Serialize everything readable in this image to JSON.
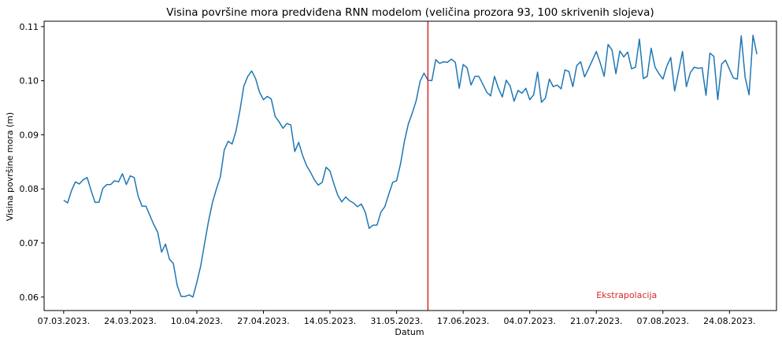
{
  "chart_data": {
    "type": "line",
    "title": "Visina površine mora predviđena RNN modelom (veličina prozora 93, 100 skrivenih slojeva)",
    "xlabel": "Datum",
    "ylabel": "Visina površine mora (m)",
    "x_start_date": "2023-03-07",
    "xlim_dates": [
      "2023-03-02",
      "2023-09-05"
    ],
    "ylim": [
      0.0575,
      0.111
    ],
    "x_ticks": [
      {
        "date": "2023-03-07",
        "label": "07.03.2023."
      },
      {
        "date": "2023-03-24",
        "label": "24.03.2023."
      },
      {
        "date": "2023-04-10",
        "label": "10.04.2023."
      },
      {
        "date": "2023-04-27",
        "label": "27.04.2023."
      },
      {
        "date": "2023-05-14",
        "label": "14.05.2023."
      },
      {
        "date": "2023-05-31",
        "label": "31.05.2023."
      },
      {
        "date": "2023-06-17",
        "label": "17.06.2023."
      },
      {
        "date": "2023-07-04",
        "label": "04.07.2023."
      },
      {
        "date": "2023-07-21",
        "label": "21.07.2023."
      },
      {
        "date": "2023-08-07",
        "label": "07.08.2023."
      },
      {
        "date": "2023-08-24",
        "label": "24.08.2023."
      }
    ],
    "y_ticks": [
      {
        "value": 0.06,
        "label": "0.06"
      },
      {
        "value": 0.07,
        "label": "0.07"
      },
      {
        "value": 0.08,
        "label": "0.08"
      },
      {
        "value": 0.09,
        "label": "0.09"
      },
      {
        "value": 0.1,
        "label": "0.10"
      },
      {
        "value": 0.11,
        "label": "0.11"
      }
    ],
    "series": [
      {
        "name": "",
        "color": "#1f77b4",
        "values": [
          0.0779,
          0.0774,
          0.0797,
          0.0813,
          0.0809,
          0.0817,
          0.0821,
          0.0797,
          0.0775,
          0.0775,
          0.0801,
          0.0808,
          0.0808,
          0.0815,
          0.0813,
          0.0828,
          0.0808,
          0.0824,
          0.0821,
          0.0787,
          0.0768,
          0.0768,
          0.0751,
          0.0734,
          0.072,
          0.0683,
          0.0698,
          0.067,
          0.0662,
          0.0621,
          0.0601,
          0.0601,
          0.0604,
          0.06,
          0.0627,
          0.0658,
          0.07,
          0.0741,
          0.0775,
          0.08,
          0.0822,
          0.0872,
          0.0888,
          0.0883,
          0.0907,
          0.0945,
          0.099,
          0.1008,
          0.1018,
          0.1004,
          0.0979,
          0.0965,
          0.0971,
          0.0966,
          0.0934,
          0.0924,
          0.0912,
          0.0921,
          0.0918,
          0.0869,
          0.0886,
          0.0862,
          0.0843,
          0.0831,
          0.0817,
          0.0807,
          0.0812,
          0.084,
          0.0833,
          0.0809,
          0.0788,
          0.0776,
          0.0785,
          0.0778,
          0.0774,
          0.0767,
          0.0772,
          0.0757,
          0.0727,
          0.0733,
          0.0733,
          0.0757,
          0.0767,
          0.079,
          0.0812,
          0.0815,
          0.0846,
          0.0888,
          0.092,
          0.094,
          0.0963,
          0.0999,
          0.1014,
          0.1001,
          0.1,
          0.1039,
          0.1032,
          0.1035,
          0.1034,
          0.104,
          0.1034,
          0.0986,
          0.103,
          0.1024,
          0.0992,
          0.1008,
          0.1008,
          0.0994,
          0.0979,
          0.0972,
          0.1008,
          0.0986,
          0.097,
          0.1001,
          0.099,
          0.0962,
          0.0982,
          0.0977,
          0.0986,
          0.0965,
          0.0974,
          0.1016,
          0.096,
          0.0968,
          0.1003,
          0.0989,
          0.0992,
          0.0985,
          0.102,
          0.1017,
          0.0989,
          0.1028,
          0.1035,
          0.1007,
          0.1022,
          0.1038,
          0.1054,
          0.1033,
          0.1008,
          0.1067,
          0.1057,
          0.1013,
          0.1055,
          0.1044,
          0.1053,
          0.1022,
          0.1025,
          0.1077,
          0.1004,
          0.1008,
          0.106,
          0.1025,
          0.1013,
          0.1003,
          0.1027,
          0.1043,
          0.0981,
          0.1017,
          0.1054,
          0.0989,
          0.1015,
          0.1025,
          0.1023,
          0.1024,
          0.0973,
          0.1051,
          0.1045,
          0.0965,
          0.1031,
          0.1038,
          0.1021,
          0.1005,
          0.1003,
          0.1083,
          0.1006,
          0.0974,
          0.1084,
          0.1049
        ]
      }
    ],
    "vertical_line": {
      "date": "2023-06-08",
      "color": "#d62728"
    },
    "annotation": {
      "text": "Ekstrapolacija",
      "date": "2023-07-21",
      "value": 0.0598,
      "color": "#d62728"
    },
    "grid": false,
    "legend": "none"
  }
}
